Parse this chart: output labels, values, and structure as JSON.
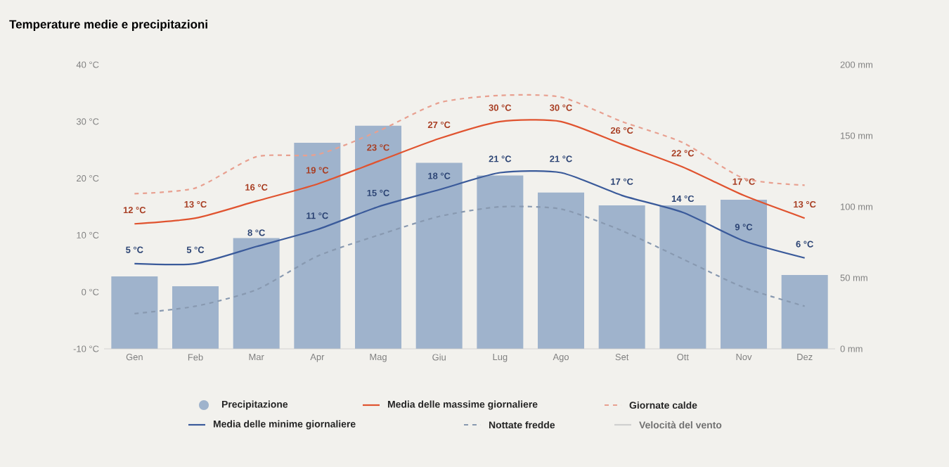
{
  "chart_data": {
    "type": "line",
    "title": "Temperature medie e precipitazioni",
    "categories": [
      "Gen",
      "Feb",
      "Mar",
      "Apr",
      "Mag",
      "Giu",
      "Lug",
      "Ago",
      "Set",
      "Ott",
      "Nov",
      "Dez"
    ],
    "series": [
      {
        "name": "Precipitazione",
        "type": "bar",
        "axis": "y2",
        "color": "#9fb3cc",
        "values": [
          51,
          44,
          78,
          145,
          157,
          131,
          122,
          110,
          101,
          101,
          105,
          52
        ]
      },
      {
        "name": "Media delle massime giornaliere",
        "color": "#e0532f",
        "values": [
          12,
          13,
          16,
          19,
          23,
          27,
          30,
          30,
          26,
          22,
          17,
          13
        ],
        "value_labels": [
          "12 °C",
          "13 °C",
          "16 °C",
          "19 °C",
          "23 °C",
          "27 °C",
          "30 °C",
          "30 °C",
          "26 °C",
          "22 °C",
          "17 °C",
          "13 °C"
        ]
      },
      {
        "name": "Giornate calde",
        "color": "#e8a090",
        "line_style": "dashed",
        "values": [
          17.3,
          18.3,
          23.8,
          24.2,
          28.3,
          33.3,
          34.6,
          34.3,
          30,
          26.3,
          20,
          18.8
        ]
      },
      {
        "name": "Media delle minime giornaliere",
        "color": "#3a5a9a",
        "values": [
          5,
          5,
          8,
          11,
          15,
          18,
          21,
          21,
          17,
          14,
          9,
          6
        ],
        "value_labels": [
          "5 °C",
          "5 °C",
          "8 °C",
          "11 °C",
          "15 °C",
          "18 °C",
          "21 °C",
          "21 °C",
          "17 °C",
          "14 °C",
          "9 °C",
          "6 °C"
        ]
      },
      {
        "name": "Nottate fredde",
        "color": "#8899b0",
        "line_style": "dashed",
        "values": [
          -3.8,
          -2.5,
          0.4,
          6.3,
          10,
          13.3,
          15,
          14.6,
          10.8,
          5.8,
          0.8,
          -2.5
        ]
      },
      {
        "name": "Velocità del vento",
        "color": "#cfcfcf",
        "values": [
          null,
          null,
          null,
          null,
          null,
          null,
          null,
          null,
          null,
          null,
          null,
          null
        ]
      }
    ],
    "ylim": [
      -10,
      40
    ],
    "yticks": [
      {
        "value": -10,
        "label": "-10 °C"
      },
      {
        "value": 0,
        "label": "0 °C"
      },
      {
        "value": 10,
        "label": "10 °C"
      },
      {
        "value": 20,
        "label": "20 °C"
      },
      {
        "value": 30,
        "label": "30 °C"
      },
      {
        "value": 40,
        "label": "40 °C"
      }
    ],
    "y2lim": [
      0,
      200
    ],
    "y2ticks": [
      {
        "value": 0,
        "label": "0 mm"
      },
      {
        "value": 50,
        "label": "50 mm"
      },
      {
        "value": 100,
        "label": "100 mm"
      },
      {
        "value": 150,
        "label": "150 mm"
      },
      {
        "value": 200,
        "label": "200 mm"
      }
    ],
    "legend": "bottom"
  }
}
